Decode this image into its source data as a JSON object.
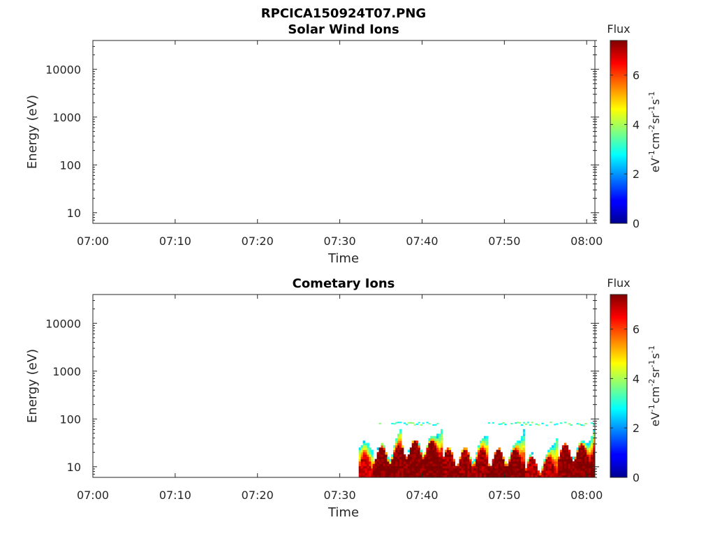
{
  "figure": {
    "title": "RPCICA150924T07.PNG"
  },
  "colorbar": {
    "label": "Flux",
    "ticks": [
      0,
      2,
      4,
      6
    ],
    "range": [
      0,
      7.4
    ],
    "colormap": "jet",
    "unit_base": "eV",
    "unit_parts": [
      {
        "base": "eV",
        "exp": "-1"
      },
      {
        "base": "cm",
        "exp": "-2"
      },
      {
        "base": "sr",
        "exp": "-1"
      },
      {
        "base": "s",
        "exp": "-1"
      }
    ]
  },
  "chart_data": [
    {
      "type": "heatmap",
      "title": "Solar Wind Ions",
      "xlabel": "Time",
      "ylabel": "Energy (eV)",
      "x_ticks": [
        "07:00",
        "07:10",
        "07:20",
        "07:30",
        "07:40",
        "07:50",
        "08:00"
      ],
      "x_range_minutes": [
        0,
        61
      ],
      "y_scale": "log",
      "y_ticks": [
        10,
        100,
        1000,
        10000
      ],
      "y_tick_labels": [
        "10",
        "100",
        "1000",
        "10000"
      ],
      "y_range": [
        6,
        40000
      ],
      "grid": false,
      "segments": []
    },
    {
      "type": "heatmap",
      "title": "Cometary Ions",
      "xlabel": "Time",
      "ylabel": "Energy (eV)",
      "x_ticks": [
        "07:00",
        "07:10",
        "07:20",
        "07:30",
        "07:40",
        "07:50",
        "08:00"
      ],
      "x_range_minutes": [
        0,
        61
      ],
      "y_scale": "log",
      "y_ticks": [
        10,
        100,
        1000,
        10000
      ],
      "y_tick_labels": [
        "10",
        "100",
        "1000",
        "10000"
      ],
      "y_range": [
        6,
        40000
      ],
      "grid": false,
      "segments": [
        {
          "start": "07:32.3",
          "end": "07:34.0",
          "peak_energy_ev": 12,
          "max_energy_ev": 18,
          "peak_flux": 6.8
        },
        {
          "start": "07:34.0",
          "end": "07:37.5",
          "peak_energy_ev": 18,
          "max_energy_ev": 80,
          "peak_flux": 7.4
        },
        {
          "start": "07:37.5",
          "end": "07:42.5",
          "peak_energy_ev": 24,
          "max_energy_ev": 80,
          "peak_flux": 7.4
        },
        {
          "start": "07:42.5",
          "end": "07:48.0",
          "peak_energy_ev": 16,
          "max_energy_ev": 45,
          "peak_flux": 7.2
        },
        {
          "start": "07:48.0",
          "end": "07:52.5",
          "peak_energy_ev": 16,
          "max_energy_ev": 80,
          "peak_flux": 7.4
        },
        {
          "start": "07:52.5",
          "end": "07:56.5",
          "peak_energy_ev": 11,
          "max_energy_ev": 80,
          "peak_flux": 7.0
        },
        {
          "start": "07:56.5",
          "end": "08:01.0",
          "peak_energy_ev": 20,
          "max_energy_ev": 80,
          "peak_flux": 7.4
        }
      ]
    }
  ]
}
